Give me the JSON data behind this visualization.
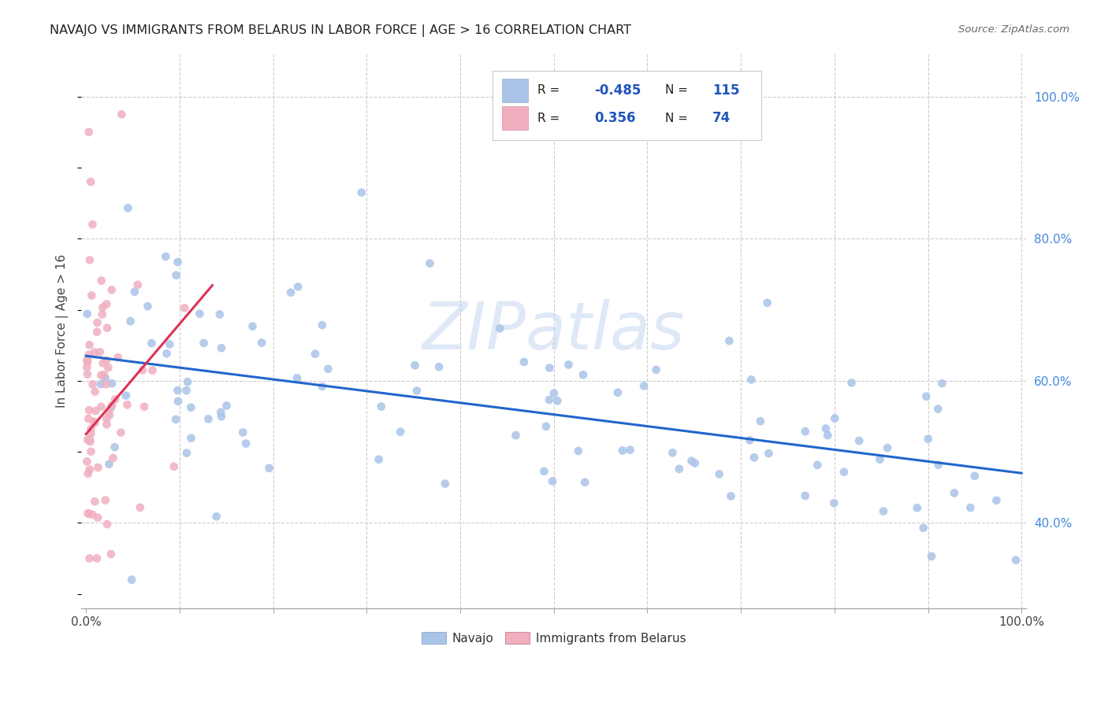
{
  "title": "NAVAJO VS IMMIGRANTS FROM BELARUS IN LABOR FORCE | AGE > 16 CORRELATION CHART",
  "source": "Source: ZipAtlas.com",
  "ylabel": "In Labor Force | Age > 16",
  "navajo_color": "#aac4e8",
  "navajo_line_color": "#2266cc",
  "belarus_color": "#f0b0c0",
  "belarus_line_color": "#dd3355",
  "legend_navajo_R": "-0.485",
  "legend_navajo_N": "115",
  "legend_belarus_R": "0.356",
  "legend_belarus_N": "74",
  "watermark": "ZIPatlas",
  "r_val_color": "#2255bb",
  "n_val_color": "#2255bb",
  "right_tick_color": "#4488dd",
  "bottom_tick_color": "#333333"
}
